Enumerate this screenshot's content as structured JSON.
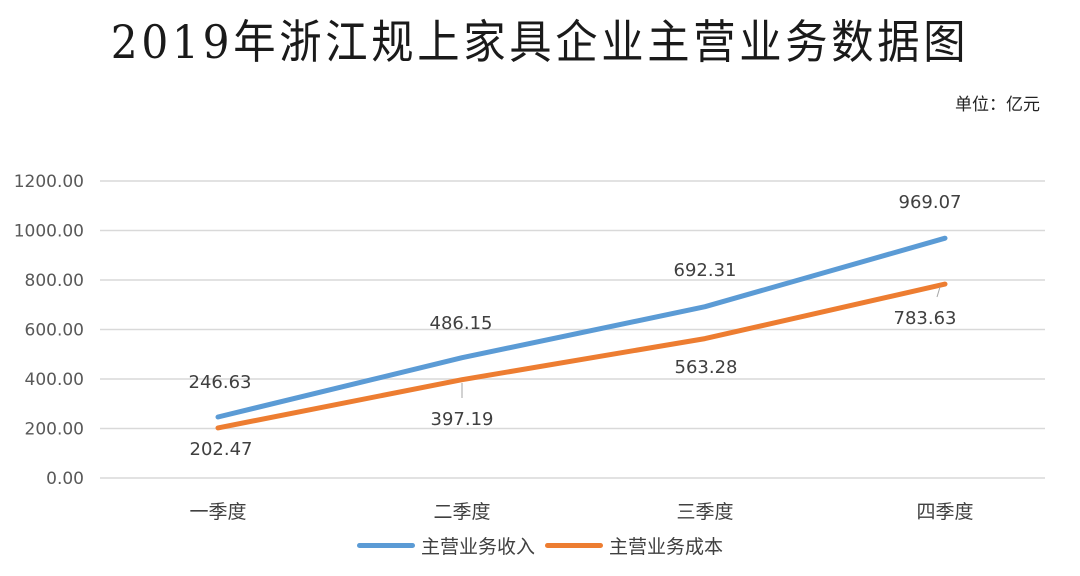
{
  "header": {
    "title": "2019年浙江规上家具企业主营业务数据图",
    "unit": "单位：亿元"
  },
  "chart_data": {
    "type": "line",
    "title": "2019年浙江规上家具企业主营业务数据图",
    "subtitle": "单位：亿元",
    "xlabel": "",
    "ylabel": "",
    "categories": [
      "一季度",
      "二季度",
      "三季度",
      "四季度"
    ],
    "series": [
      {
        "name": "主营业务收入",
        "color": "#5b9bd5",
        "values": [
          246.63,
          486.15,
          692.31,
          969.07
        ],
        "labels": [
          "246.63",
          "486.15",
          "692.31",
          "969.07"
        ]
      },
      {
        "name": "主营业务成本",
        "color": "#ed7d31",
        "values": [
          202.47,
          397.19,
          563.28,
          783.63
        ],
        "labels": [
          "202.47",
          "397.19",
          "563.28",
          "783.63"
        ]
      }
    ],
    "yticks": [
      "0.00",
      "200.00",
      "400.00",
      "600.00",
      "800.00",
      "1000.00",
      "1200.00"
    ],
    "ylim": [
      0,
      1200
    ],
    "grid": true,
    "legend_position": "bottom"
  }
}
